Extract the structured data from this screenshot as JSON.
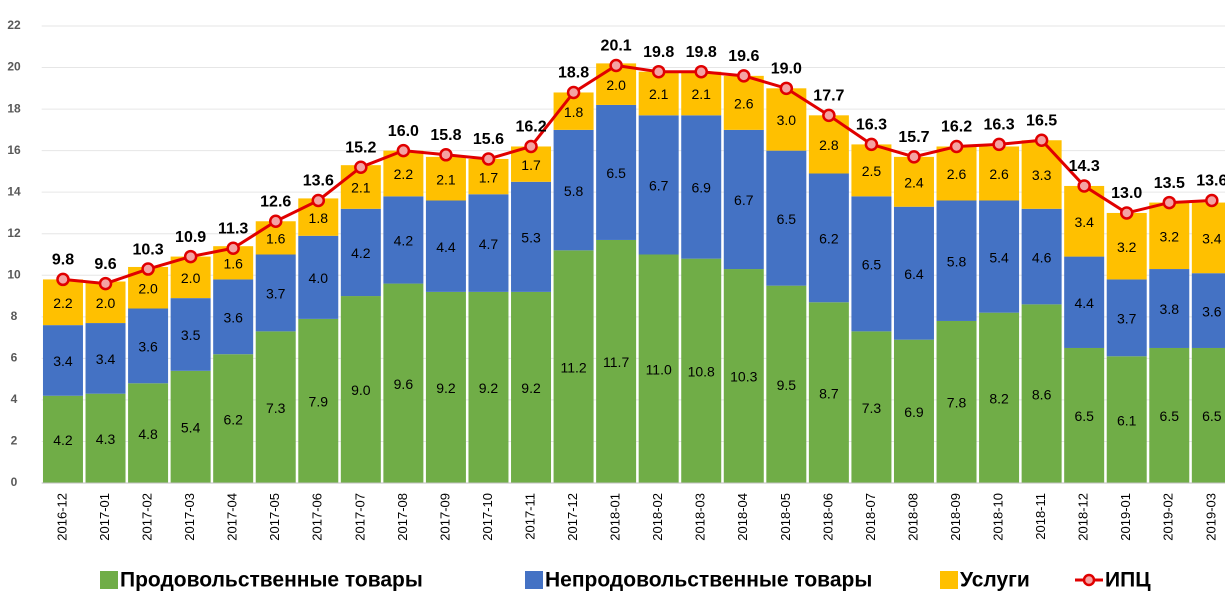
{
  "chart_data": {
    "type": "bar",
    "stacked": true,
    "grid": true,
    "legend": "bottom",
    "categories": [
      "2016-12",
      "2017-01",
      "2017-02",
      "2017-03",
      "2017-04",
      "2017-05",
      "2017-06",
      "2017-07",
      "2017-08",
      "2017-09",
      "2017-10",
      "2017-11",
      "2017-12",
      "2018-01",
      "2018-02",
      "2018-03",
      "2018-04",
      "2018-05",
      "2018-06",
      "2018-07",
      "2018-08",
      "2018-09",
      "2018-10",
      "2018-11",
      "2018-12",
      "2019-01",
      "2019-02",
      "2019-03"
    ],
    "ylim": [
      0,
      22
    ],
    "yticks": [
      0,
      2,
      4,
      6,
      8,
      10,
      12,
      14,
      16,
      18,
      20,
      22
    ],
    "series": [
      {
        "name": "Продовольственные товары",
        "color": "#70ad47",
        "type": "bar",
        "values": [
          4.2,
          4.3,
          4.8,
          5.4,
          6.2,
          7.3,
          7.9,
          9.0,
          9.6,
          9.2,
          9.2,
          9.2,
          11.2,
          11.7,
          11.0,
          10.8,
          10.3,
          9.5,
          8.7,
          7.3,
          6.9,
          7.8,
          8.2,
          8.6,
          6.5,
          6.1,
          6.5,
          6.5
        ],
        "value_labels": [
          "4.2",
          "4.3",
          "4.8",
          "5.4",
          "6.2",
          "7.3",
          "7.9",
          "9.0",
          "9.6",
          "9.2",
          "9.2",
          "9.2",
          "11.2",
          "11.7",
          "11.0",
          "10.8",
          "10.3",
          "9.5",
          "8.7",
          "7.3",
          "6.9",
          "7.8",
          "8.2",
          "8.6",
          "6.5",
          "6.1",
          "6.5",
          "6.5"
        ]
      },
      {
        "name": "Непродовольственные товары",
        "color": "#4472c4",
        "type": "bar",
        "values": [
          3.4,
          3.4,
          3.6,
          3.5,
          3.6,
          3.7,
          4.0,
          4.2,
          4.2,
          4.4,
          4.7,
          5.3,
          5.8,
          6.5,
          6.7,
          6.9,
          6.7,
          6.5,
          6.2,
          6.5,
          6.4,
          5.8,
          5.4,
          4.6,
          4.4,
          3.7,
          3.8,
          3.6
        ],
        "value_labels": [
          "3.4",
          "3.4",
          "3.6",
          "3.5",
          "3.6",
          "3.7",
          "4.0",
          "4.2",
          "4.2",
          "4.4",
          "4.7",
          "5.3",
          "5.8",
          "6.5",
          "6.7",
          "6.9",
          "6.7",
          "6.5",
          "6.2",
          "6.5",
          "6.4",
          "5.8",
          "5.4",
          "4.6",
          "4.4",
          "3.7",
          "3.8",
          "3.6"
        ]
      },
      {
        "name": "Услуги",
        "color": "#ffc000",
        "type": "bar",
        "values": [
          2.2,
          2.0,
          2.0,
          2.0,
          1.6,
          1.6,
          1.8,
          2.1,
          2.2,
          2.1,
          1.7,
          1.7,
          1.8,
          2.0,
          2.1,
          2.1,
          2.6,
          3.0,
          2.8,
          2.5,
          2.4,
          2.6,
          2.6,
          3.3,
          3.4,
          3.2,
          3.2,
          3.4
        ],
        "value_labels": [
          "2.2",
          "2.0",
          "2.0",
          "2.0",
          "1.6",
          "1.6",
          "1.8",
          "2.1",
          "2.2",
          "2.1",
          "1.7",
          "1.7",
          "1.8",
          "2.0",
          "2.1",
          "2.1",
          "2.6",
          "3.0",
          "2.8",
          "2.5",
          "2.4",
          "2.6",
          "2.6",
          "3.3",
          "3.4",
          "3.2",
          "3.2",
          "3.4"
        ]
      },
      {
        "name": "ИПЦ",
        "color": "#e00000",
        "type": "line",
        "values": [
          9.8,
          9.6,
          10.3,
          10.9,
          11.3,
          12.6,
          13.6,
          15.2,
          16.0,
          15.8,
          15.6,
          16.2,
          18.8,
          20.1,
          19.8,
          19.8,
          19.6,
          19.0,
          17.7,
          16.3,
          15.7,
          16.2,
          16.3,
          16.5,
          14.3,
          13.0,
          13.5,
          13.6
        ],
        "value_labels": [
          "9.8",
          "9.6",
          "10.3",
          "10.9",
          "11.3",
          "12.6",
          "13.6",
          "15.2",
          "16.0",
          "15.8",
          "15.6",
          "16.2",
          "18.8",
          "20.1",
          "19.8",
          "19.8",
          "19.6",
          "19.0",
          "17.7",
          "16.3",
          "15.7",
          "16.2",
          "16.3",
          "16.5",
          "14.3",
          "13.0",
          "13.5",
          "13.6"
        ]
      }
    ]
  }
}
